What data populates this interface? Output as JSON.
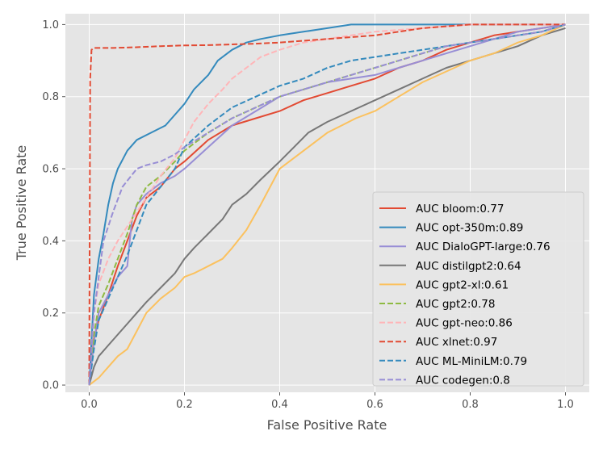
{
  "chart_data": {
    "type": "line",
    "title": "",
    "xlabel": "False Positive Rate",
    "ylabel": "True Positive Rate",
    "xlim": [
      -0.05,
      1.05
    ],
    "ylim": [
      -0.02,
      1.03
    ],
    "xticks": [
      0.0,
      0.2,
      0.4,
      0.6,
      0.8,
      1.0
    ],
    "yticks": [
      0.0,
      0.2,
      0.4,
      0.6,
      0.8,
      1.0
    ],
    "xtick_labels": [
      "0.0",
      "0.2",
      "0.4",
      "0.6",
      "0.8",
      "1.0"
    ],
    "ytick_labels": [
      "0.0",
      "0.2",
      "0.4",
      "0.6",
      "0.8",
      "1.0"
    ],
    "grid": true,
    "legend_position": "lower-right",
    "series": [
      {
        "name": "AUC bloom:0.77",
        "color": "#e24a33",
        "dash": "solid",
        "x": [
          0,
          0.01,
          0.02,
          0.04,
          0.06,
          0.08,
          0.1,
          0.12,
          0.15,
          0.18,
          0.2,
          0.25,
          0.3,
          0.35,
          0.4,
          0.45,
          0.5,
          0.55,
          0.6,
          0.65,
          0.7,
          0.75,
          0.8,
          0.85,
          0.9,
          0.95,
          1.0
        ],
        "y": [
          0,
          0.13,
          0.18,
          0.25,
          0.33,
          0.4,
          0.47,
          0.52,
          0.55,
          0.6,
          0.62,
          0.68,
          0.72,
          0.74,
          0.76,
          0.79,
          0.81,
          0.83,
          0.85,
          0.88,
          0.9,
          0.93,
          0.95,
          0.97,
          0.98,
          0.99,
          1.0
        ]
      },
      {
        "name": "AUC opt-350m:0.89",
        "color": "#348abd",
        "dash": "solid",
        "x": [
          0,
          0.01,
          0.02,
          0.03,
          0.04,
          0.05,
          0.06,
          0.08,
          0.1,
          0.13,
          0.16,
          0.18,
          0.2,
          0.22,
          0.25,
          0.27,
          0.3,
          0.33,
          0.36,
          0.4,
          0.45,
          0.5,
          0.55,
          0.6,
          0.7,
          0.8,
          0.9,
          1.0
        ],
        "y": [
          0,
          0.25,
          0.35,
          0.42,
          0.5,
          0.56,
          0.6,
          0.65,
          0.68,
          0.7,
          0.72,
          0.75,
          0.78,
          0.82,
          0.86,
          0.9,
          0.93,
          0.95,
          0.96,
          0.97,
          0.98,
          0.99,
          1.0,
          1.0,
          1.0,
          1.0,
          1.0,
          1.0
        ]
      },
      {
        "name": "AUC DialoGPT-large:0.76",
        "color": "#988ed5",
        "dash": "solid",
        "x": [
          0,
          0.01,
          0.02,
          0.04,
          0.06,
          0.08,
          0.085,
          0.09,
          0.1,
          0.12,
          0.15,
          0.18,
          0.2,
          0.25,
          0.3,
          0.35,
          0.4,
          0.45,
          0.5,
          0.55,
          0.6,
          0.65,
          0.7,
          0.75,
          0.8,
          0.85,
          0.9,
          0.95,
          1.0
        ],
        "y": [
          0,
          0.12,
          0.2,
          0.25,
          0.3,
          0.33,
          0.4,
          0.46,
          0.5,
          0.53,
          0.56,
          0.58,
          0.6,
          0.66,
          0.72,
          0.76,
          0.8,
          0.82,
          0.84,
          0.85,
          0.86,
          0.88,
          0.9,
          0.92,
          0.94,
          0.96,
          0.98,
          0.99,
          1.0
        ]
      },
      {
        "name": "AUC distilgpt2:0.64",
        "color": "#777777",
        "dash": "solid",
        "x": [
          0,
          0.01,
          0.02,
          0.04,
          0.06,
          0.08,
          0.1,
          0.12,
          0.15,
          0.18,
          0.2,
          0.22,
          0.25,
          0.28,
          0.3,
          0.33,
          0.36,
          0.4,
          0.43,
          0.46,
          0.5,
          0.55,
          0.6,
          0.65,
          0.7,
          0.75,
          0.8,
          0.85,
          0.9,
          0.95,
          1.0
        ],
        "y": [
          0,
          0.05,
          0.08,
          0.11,
          0.14,
          0.17,
          0.2,
          0.23,
          0.27,
          0.31,
          0.35,
          0.38,
          0.42,
          0.46,
          0.5,
          0.53,
          0.57,
          0.62,
          0.66,
          0.7,
          0.73,
          0.76,
          0.79,
          0.82,
          0.85,
          0.88,
          0.9,
          0.92,
          0.94,
          0.97,
          0.99
        ]
      },
      {
        "name": "AUC gpt2-xl:0.61",
        "color": "#fbc15e",
        "dash": "solid",
        "x": [
          0,
          0.02,
          0.04,
          0.06,
          0.08,
          0.1,
          0.12,
          0.15,
          0.18,
          0.2,
          0.22,
          0.25,
          0.28,
          0.3,
          0.33,
          0.36,
          0.38,
          0.4,
          0.43,
          0.46,
          0.5,
          0.53,
          0.56,
          0.6,
          0.65,
          0.7,
          0.75,
          0.8,
          0.85,
          0.9,
          0.95,
          1.0
        ],
        "y": [
          0,
          0.02,
          0.05,
          0.08,
          0.1,
          0.15,
          0.2,
          0.24,
          0.27,
          0.3,
          0.31,
          0.33,
          0.35,
          0.38,
          0.43,
          0.5,
          0.55,
          0.6,
          0.63,
          0.66,
          0.7,
          0.72,
          0.74,
          0.76,
          0.8,
          0.84,
          0.87,
          0.9,
          0.92,
          0.95,
          0.97,
          1.0
        ]
      },
      {
        "name": "AUC gpt2:0.78",
        "color": "#8eba42",
        "dash": "dashed",
        "x": [
          0,
          0.01,
          0.02,
          0.04,
          0.06,
          0.08,
          0.1,
          0.12,
          0.15,
          0.18,
          0.2,
          0.25,
          0.3,
          0.35,
          0.4,
          0.45,
          0.5,
          0.55,
          0.6,
          0.65,
          0.7,
          0.75,
          0.8,
          0.85,
          0.9,
          0.95,
          1.0
        ],
        "y": [
          0,
          0.14,
          0.22,
          0.28,
          0.35,
          0.42,
          0.5,
          0.55,
          0.58,
          0.62,
          0.65,
          0.7,
          0.74,
          0.77,
          0.8,
          0.82,
          0.84,
          0.86,
          0.88,
          0.9,
          0.92,
          0.94,
          0.95,
          0.96,
          0.97,
          0.98,
          1.0
        ]
      },
      {
        "name": "AUC gpt-neo:0.86",
        "color": "#ffb5b8",
        "dash": "dashed",
        "x": [
          0,
          0.01,
          0.02,
          0.04,
          0.06,
          0.08,
          0.1,
          0.12,
          0.15,
          0.18,
          0.2,
          0.22,
          0.25,
          0.28,
          0.3,
          0.33,
          0.36,
          0.4,
          0.45,
          0.5,
          0.55,
          0.6,
          0.7,
          0.8,
          0.9,
          1.0
        ],
        "y": [
          0,
          0.2,
          0.28,
          0.35,
          0.4,
          0.44,
          0.48,
          0.52,
          0.58,
          0.63,
          0.68,
          0.73,
          0.78,
          0.82,
          0.85,
          0.88,
          0.91,
          0.93,
          0.95,
          0.96,
          0.97,
          0.98,
          0.99,
          1.0,
          1.0,
          1.0
        ]
      },
      {
        "name": "AUC xlnet:0.97",
        "color": "#e24a33",
        "dash": "dashed",
        "x": [
          0,
          0.002,
          0.005,
          0.01,
          0.05,
          0.1,
          0.15,
          0.2,
          0.25,
          0.3,
          0.35,
          0.4,
          0.45,
          0.5,
          0.55,
          0.6,
          0.65,
          0.7,
          0.8,
          0.9,
          1.0
        ],
        "y": [
          0,
          0.85,
          0.93,
          0.935,
          0.935,
          0.937,
          0.94,
          0.942,
          0.943,
          0.945,
          0.947,
          0.95,
          0.955,
          0.96,
          0.965,
          0.97,
          0.98,
          0.99,
          1.0,
          1.0,
          1.0
        ]
      },
      {
        "name": "AUC ML-MiniLM:0.79",
        "color": "#348abd",
        "dash": "dashed",
        "x": [
          0,
          0.01,
          0.02,
          0.04,
          0.06,
          0.08,
          0.1,
          0.12,
          0.15,
          0.18,
          0.2,
          0.25,
          0.3,
          0.35,
          0.4,
          0.45,
          0.5,
          0.55,
          0.6,
          0.65,
          0.7,
          0.75,
          0.8,
          0.85,
          0.9,
          0.95,
          1.0
        ],
        "y": [
          0,
          0.1,
          0.18,
          0.24,
          0.3,
          0.36,
          0.43,
          0.5,
          0.55,
          0.6,
          0.66,
          0.72,
          0.77,
          0.8,
          0.83,
          0.85,
          0.88,
          0.9,
          0.91,
          0.92,
          0.93,
          0.94,
          0.95,
          0.96,
          0.97,
          0.98,
          1.0
        ]
      },
      {
        "name": "AUC codegen:0.8",
        "color": "#988ed5",
        "dash": "dashed",
        "x": [
          0,
          0.01,
          0.02,
          0.03,
          0.05,
          0.07,
          0.1,
          0.12,
          0.15,
          0.18,
          0.2,
          0.25,
          0.3,
          0.35,
          0.4,
          0.45,
          0.5,
          0.55,
          0.6,
          0.65,
          0.7,
          0.75,
          0.8,
          0.85,
          0.9,
          0.95,
          1.0
        ],
        "y": [
          0,
          0.2,
          0.3,
          0.4,
          0.48,
          0.55,
          0.6,
          0.61,
          0.62,
          0.64,
          0.66,
          0.7,
          0.74,
          0.77,
          0.8,
          0.82,
          0.84,
          0.86,
          0.88,
          0.9,
          0.92,
          0.94,
          0.95,
          0.96,
          0.97,
          0.98,
          1.0
        ]
      }
    ]
  }
}
